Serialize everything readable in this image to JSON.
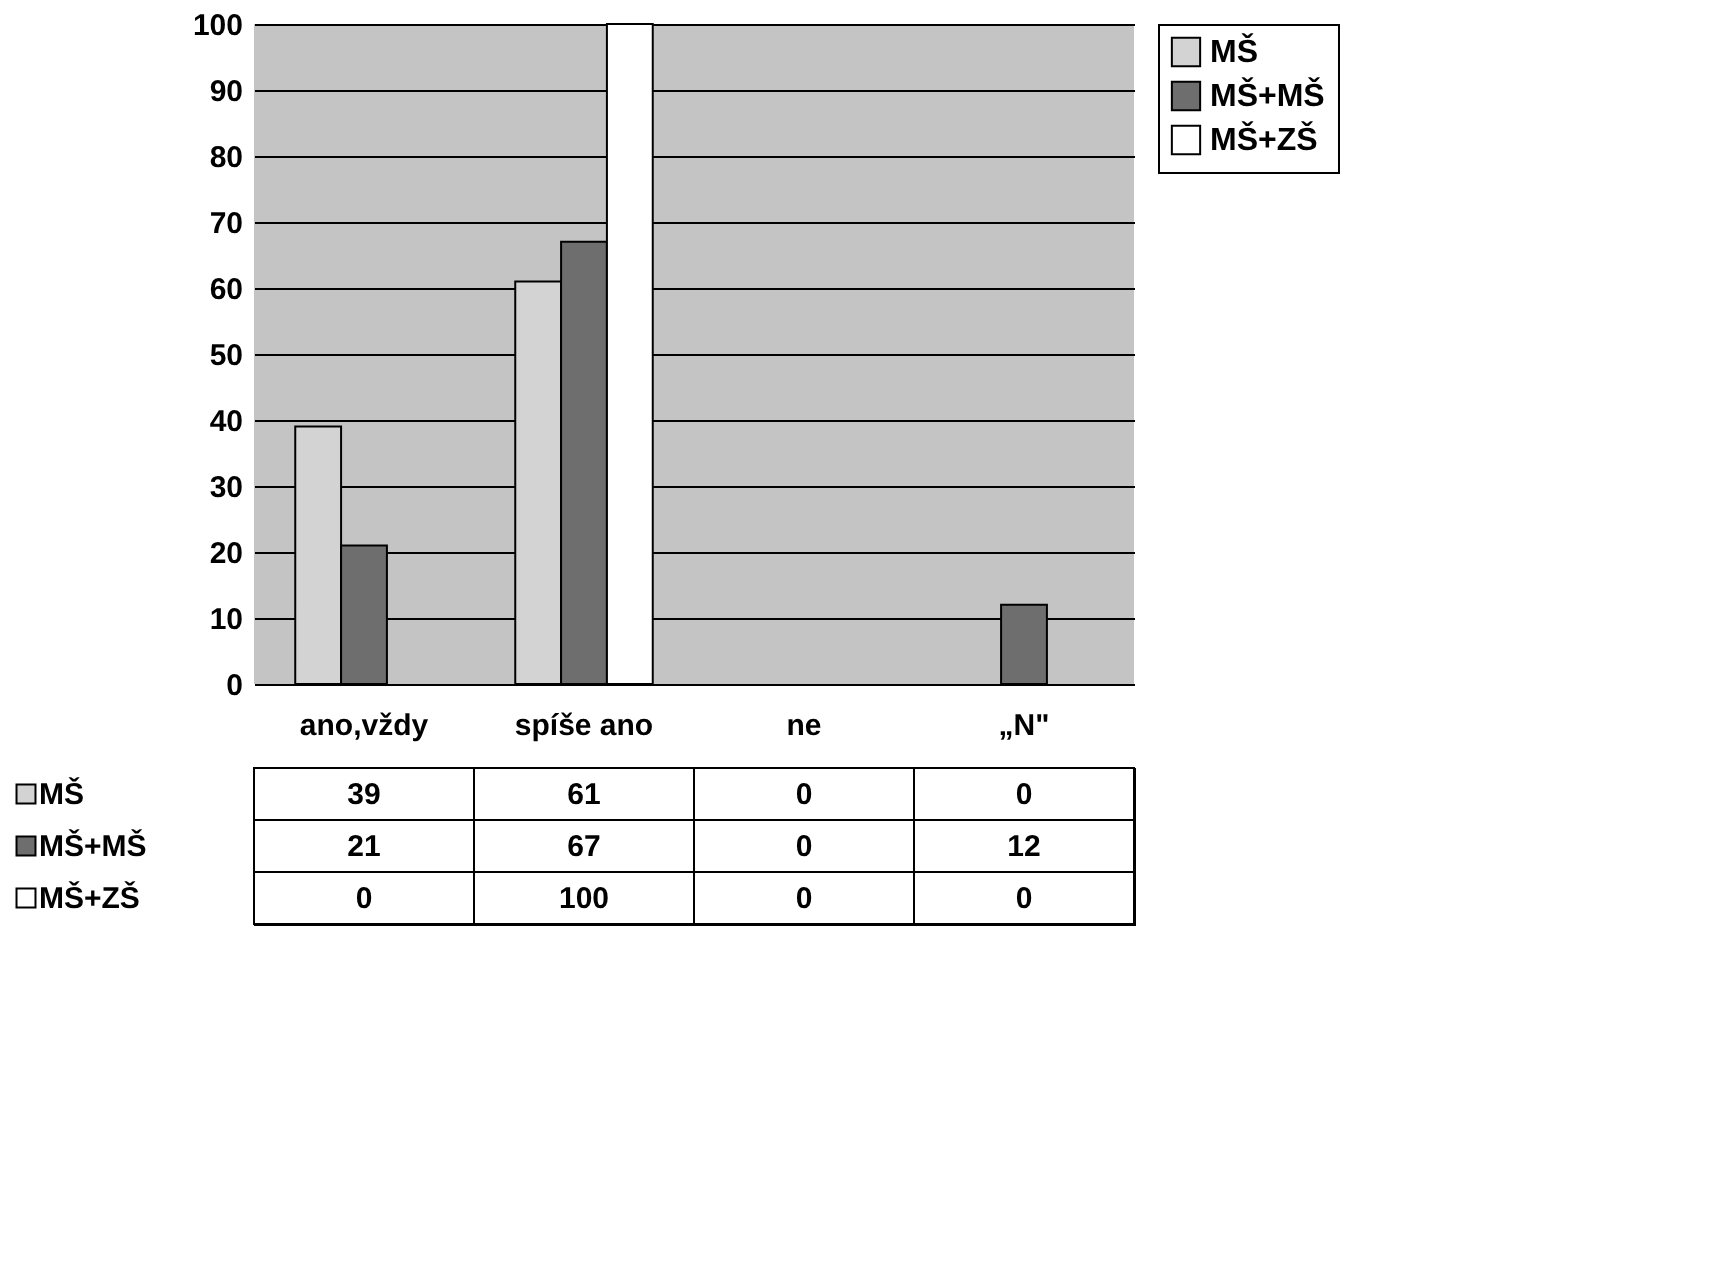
{
  "chart_data": {
    "type": "bar",
    "categories": [
      "ano,vždy",
      "spíše ano",
      "ne",
      "„N\""
    ],
    "series": [
      {
        "name": "MŠ",
        "color": "#d3d3d3",
        "values": [
          39,
          61,
          0,
          0
        ]
      },
      {
        "name": "MŠ+MŠ",
        "color": "#6e6e6e",
        "values": [
          21,
          67,
          0,
          12
        ]
      },
      {
        "name": "MŠ+ZŠ",
        "color": "#ffffff",
        "values": [
          0,
          100,
          0,
          0
        ]
      }
    ],
    "ylim": [
      0,
      100
    ],
    "yticks": [
      0,
      10,
      20,
      30,
      40,
      50,
      60,
      70,
      80,
      90,
      100
    ],
    "grid": "y",
    "legend": "right",
    "data_labels": true
  }
}
